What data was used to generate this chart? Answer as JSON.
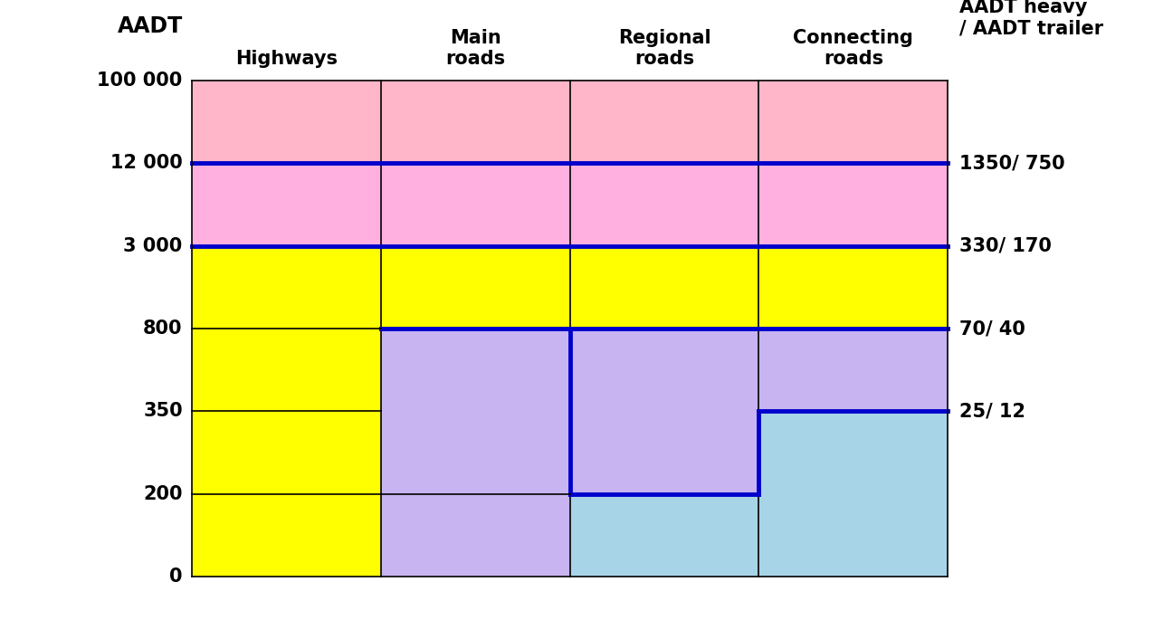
{
  "col_headers": [
    "Highways",
    "Main\nroads",
    "Regional\nroads",
    "Connecting\nroads"
  ],
  "yticks": [
    0,
    200,
    350,
    800,
    3000,
    12000,
    100000
  ],
  "ytick_labels": [
    "0",
    "200",
    "350",
    "800",
    "3 000",
    "12 000",
    "100 000"
  ],
  "colors": {
    "pink": "#FFB6C8",
    "pink2": "#FFB0E0",
    "yellow": "#FFFF00",
    "lavender": "#C8B4F0",
    "light_blue": "#A8D4E8",
    "blue_line": "#0000CC",
    "black": "#000000",
    "white": "#FFFFFF",
    "gray_line": "#666666"
  },
  "label_fontsize": 15,
  "header_fontsize": 15,
  "ytick_fontsize": 15,
  "category_fontsize": 19,
  "right_labels": [
    [
      12000,
      "1350/ 750"
    ],
    [
      3000,
      "330/ 170"
    ],
    [
      800,
      "70/ 40"
    ],
    [
      350,
      "25/ 12"
    ]
  ]
}
